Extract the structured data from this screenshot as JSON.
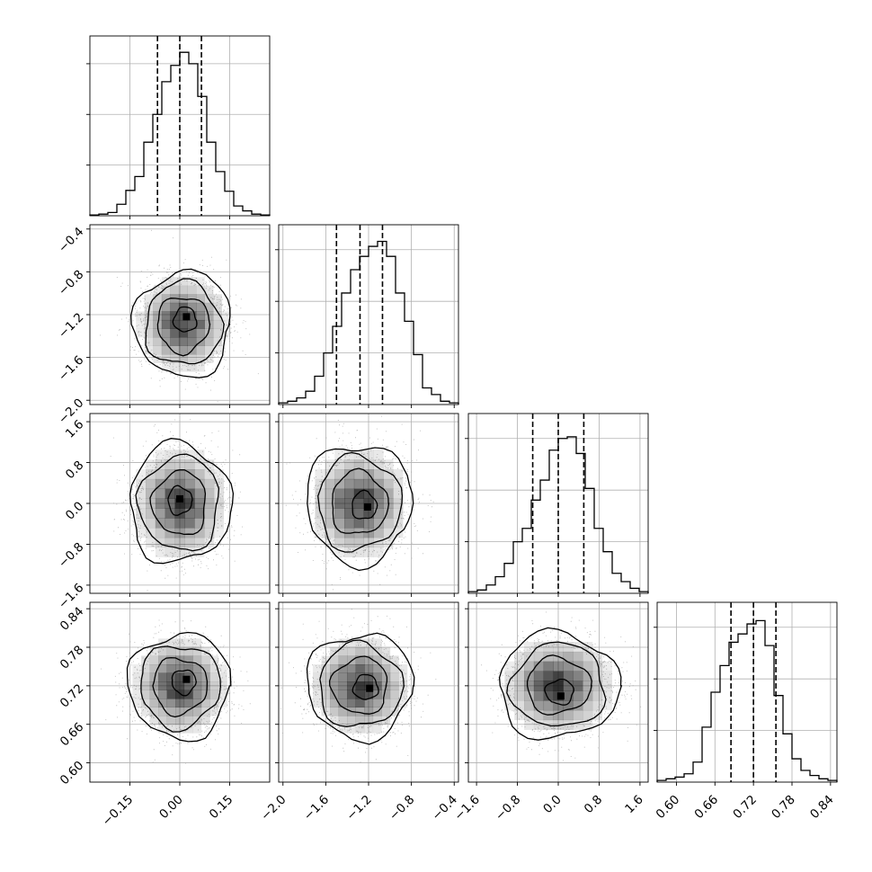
{
  "chart_data": {
    "type": "corner",
    "variables": [
      {
        "ticks": [
          -0.15,
          0.0,
          0.15
        ],
        "tick_labels": [
          "−0.15",
          "0.00",
          "0.15"
        ],
        "range": [
          -0.27,
          0.27
        ],
        "quantiles": [
          -0.067,
          0.0,
          0.065
        ],
        "hist": {
          "values": [
            0.005,
            0.01,
            0.02,
            0.07,
            0.155,
            0.24,
            0.45,
            0.62,
            0.82,
            0.92,
            1.0,
            0.93,
            0.73,
            0.45,
            0.27,
            0.15,
            0.06,
            0.03,
            0.01,
            0.005
          ],
          "ymax": 1.1
        }
      },
      {
        "ticks": [
          -2.0,
          -1.6,
          -1.2,
          -0.8,
          -0.4
        ],
        "tick_labels": [
          "−2.0",
          "−1.6",
          "−1.2",
          "−0.8",
          "−0.4"
        ],
        "range": [
          -2.04,
          -0.36
        ],
        "quantiles": [
          -1.5,
          -1.28,
          -1.07
        ],
        "hist": {
          "values": [
            0.01,
            0.02,
            0.04,
            0.08,
            0.17,
            0.31,
            0.47,
            0.67,
            0.81,
            0.89,
            0.95,
            0.98,
            0.89,
            0.67,
            0.5,
            0.3,
            0.1,
            0.06,
            0.02,
            0.01
          ],
          "ymax": 1.08
        }
      },
      {
        "ticks": [
          -1.6,
          -0.8,
          0.0,
          0.8,
          1.6
        ],
        "tick_labels": [
          "−1.6",
          "−0.8",
          "0.0",
          "0.8",
          "1.6"
        ],
        "range": [
          -1.76,
          1.76
        ],
        "quantiles": [
          -0.5,
          0.0,
          0.5
        ],
        "hist": {
          "values": [
            0.01,
            0.02,
            0.05,
            0.1,
            0.18,
            0.31,
            0.39,
            0.56,
            0.68,
            0.86,
            0.93,
            0.94,
            0.84,
            0.63,
            0.39,
            0.25,
            0.12,
            0.07,
            0.03,
            0.01
          ],
          "ymax": 1.08
        }
      },
      {
        "ticks": [
          0.6,
          0.66,
          0.72,
          0.78,
          0.84
        ],
        "tick_labels": [
          "0.60",
          "0.66",
          "0.72",
          "0.78",
          "0.84"
        ],
        "range": [
          0.57,
          0.85
        ],
        "quantiles": [
          0.685,
          0.72,
          0.755
        ],
        "hist": {
          "values": [
            0.01,
            0.02,
            0.03,
            0.05,
            0.12,
            0.33,
            0.54,
            0.7,
            0.84,
            0.89,
            0.95,
            0.97,
            0.82,
            0.52,
            0.29,
            0.14,
            0.07,
            0.04,
            0.02,
            0.01
          ],
          "ymax": 1.08
        }
      }
    ],
    "hist_style": "step",
    "quantile_style": "dashed",
    "grid": true,
    "contour_panels": [
      {
        "row": 1,
        "col": 0,
        "center": [
          0.01,
          -1.29
        ],
        "sigma": [
          0.062,
          0.21
        ],
        "dense_spot": [
          0.02,
          -1.22
        ]
      },
      {
        "row": 2,
        "col": 0,
        "center": [
          0.0,
          0.0
        ],
        "sigma": [
          0.065,
          0.5
        ],
        "dense_spot": [
          0.0,
          0.09
        ]
      },
      {
        "row": 2,
        "col": 1,
        "center": [
          -1.29,
          0.0
        ],
        "sigma": [
          0.21,
          0.5
        ],
        "dense_spot": [
          -1.21,
          -0.07
        ]
      },
      {
        "row": 3,
        "col": 0,
        "center": [
          0.0,
          0.72
        ],
        "sigma": [
          0.065,
          0.035
        ],
        "dense_spot": [
          0.02,
          0.73
        ]
      },
      {
        "row": 3,
        "col": 1,
        "center": [
          -1.28,
          0.72
        ],
        "sigma": [
          0.21,
          0.035
        ],
        "dense_spot": [
          -1.19,
          0.716
        ]
      },
      {
        "row": 3,
        "col": 2,
        "center": [
          0.0,
          0.72
        ],
        "sigma": [
          0.5,
          0.035
        ],
        "dense_spot": [
          0.05,
          0.704
        ]
      }
    ],
    "contour_levels": 4,
    "colors": {
      "line": "#000000",
      "grid": "#b0b0b0",
      "density": "#000000",
      "points": "#a0a0a0"
    }
  }
}
